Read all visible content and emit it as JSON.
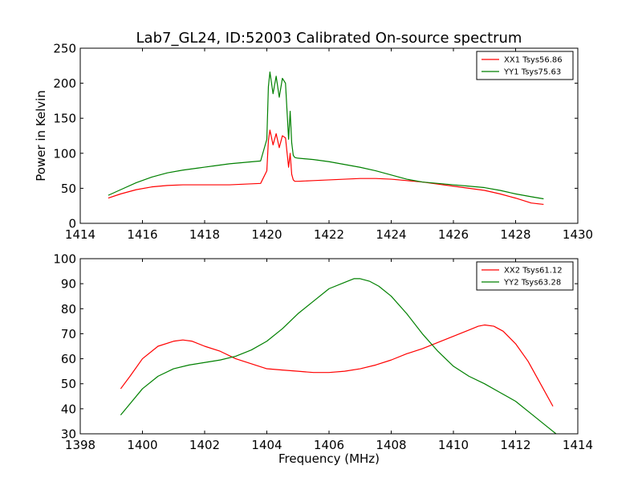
{
  "chart_data": [
    {
      "type": "line",
      "title": "Lab7_GL24, ID:52003 Calibrated On-source spectrum",
      "xlabel": "",
      "ylabel": "Power in Kelvin",
      "xlim": [
        1414,
        1430
      ],
      "ylim": [
        0,
        250
      ],
      "xticks": [
        "1414",
        "1416",
        "1418",
        "1420",
        "1422",
        "1424",
        "1426",
        "1428",
        "1430"
      ],
      "yticks": [
        "0",
        "50",
        "100",
        "150",
        "200",
        "250"
      ],
      "grid": false,
      "legend_position": "top-right",
      "series": [
        {
          "name": "XX1 Tsys56.86",
          "color": "#ff0000",
          "x": [
            1414.9,
            1415.3,
            1415.8,
            1416.3,
            1416.8,
            1417.3,
            1417.8,
            1418.3,
            1418.8,
            1419.3,
            1419.8,
            1420.0,
            1420.05,
            1420.1,
            1420.2,
            1420.3,
            1420.4,
            1420.5,
            1420.6,
            1420.7,
            1420.75,
            1420.8,
            1420.85,
            1420.9,
            1421.0,
            1421.5,
            1422.0,
            1422.5,
            1423.0,
            1423.5,
            1424.0,
            1424.5,
            1425.0,
            1425.5,
            1426.0,
            1426.5,
            1427.0,
            1427.5,
            1428.0,
            1428.5,
            1428.9
          ],
          "y": [
            36,
            42,
            48,
            52,
            54,
            55,
            55,
            55,
            55,
            56,
            57,
            75,
            118,
            133,
            112,
            128,
            108,
            125,
            122,
            80,
            100,
            70,
            62,
            60,
            60,
            61,
            62,
            63,
            64,
            64,
            63,
            61,
            59,
            56,
            53,
            50,
            47,
            42,
            36,
            29,
            27
          ]
        },
        {
          "name": "YY1 Tsys75.63",
          "color": "#008000",
          "x": [
            1414.9,
            1415.3,
            1415.8,
            1416.3,
            1416.8,
            1417.3,
            1417.8,
            1418.3,
            1418.8,
            1419.3,
            1419.8,
            1420.0,
            1420.05,
            1420.1,
            1420.2,
            1420.3,
            1420.4,
            1420.5,
            1420.6,
            1420.7,
            1420.75,
            1420.8,
            1420.85,
            1420.9,
            1421.0,
            1421.5,
            1422.0,
            1422.5,
            1423.0,
            1423.5,
            1424.0,
            1424.5,
            1425.0,
            1425.5,
            1426.0,
            1426.5,
            1427.0,
            1427.5,
            1428.0,
            1428.5,
            1428.9
          ],
          "y": [
            40,
            48,
            58,
            66,
            72,
            76,
            79,
            82,
            85,
            87,
            89,
            120,
            195,
            216,
            185,
            210,
            180,
            207,
            200,
            120,
            160,
            115,
            97,
            94,
            93,
            91,
            88,
            84,
            80,
            75,
            69,
            63,
            59,
            57,
            55,
            53,
            51,
            47,
            42,
            38,
            35
          ]
        }
      ]
    },
    {
      "type": "line",
      "title": "",
      "xlabel": "Frequency (MHz)",
      "ylabel": "",
      "xlim": [
        1398,
        1414
      ],
      "ylim": [
        30,
        100
      ],
      "xticks": [
        "1398",
        "1400",
        "1402",
        "1404",
        "1406",
        "1408",
        "1410",
        "1412",
        "1414"
      ],
      "yticks": [
        "30",
        "40",
        "50",
        "60",
        "70",
        "80",
        "90",
        "100"
      ],
      "grid": false,
      "legend_position": "top-right",
      "series": [
        {
          "name": "XX2 Tsys61.12",
          "color": "#ff0000",
          "x": [
            1399.3,
            1399.6,
            1400.0,
            1400.5,
            1401.0,
            1401.3,
            1401.6,
            1402.0,
            1402.5,
            1403.0,
            1403.5,
            1404.0,
            1404.5,
            1405.0,
            1405.5,
            1406.0,
            1406.5,
            1407.0,
            1407.5,
            1408.0,
            1408.5,
            1409.0,
            1409.5,
            1410.0,
            1410.5,
            1410.8,
            1411.0,
            1411.3,
            1411.6,
            1412.0,
            1412.4,
            1412.8,
            1413.2
          ],
          "y": [
            48,
            53,
            60,
            65,
            67,
            67.5,
            67,
            65,
            63,
            60,
            58,
            56,
            55.5,
            55,
            54.5,
            54.5,
            55,
            56,
            57.5,
            59.5,
            62,
            64,
            66.5,
            69,
            71.5,
            73,
            73.5,
            73,
            71,
            66,
            59,
            50,
            41
          ]
        },
        {
          "name": "YY2 Tsys63.28",
          "color": "#008000",
          "x": [
            1399.3,
            1399.6,
            1400.0,
            1400.5,
            1401.0,
            1401.5,
            1402.0,
            1402.5,
            1403.0,
            1403.5,
            1404.0,
            1404.5,
            1405.0,
            1405.5,
            1406.0,
            1406.5,
            1406.8,
            1407.0,
            1407.3,
            1407.6,
            1408.0,
            1408.5,
            1409.0,
            1409.5,
            1410.0,
            1410.5,
            1411.0,
            1411.5,
            1412.0,
            1412.5,
            1413.0,
            1413.3
          ],
          "y": [
            37.5,
            42,
            48,
            53,
            56,
            57.5,
            58.5,
            59.5,
            61,
            63.5,
            67,
            72,
            78,
            83,
            88,
            90.5,
            92,
            92,
            91,
            89,
            85,
            78,
            70,
            63,
            57,
            53,
            50,
            46.5,
            43,
            38,
            33,
            30
          ]
        }
      ]
    }
  ]
}
